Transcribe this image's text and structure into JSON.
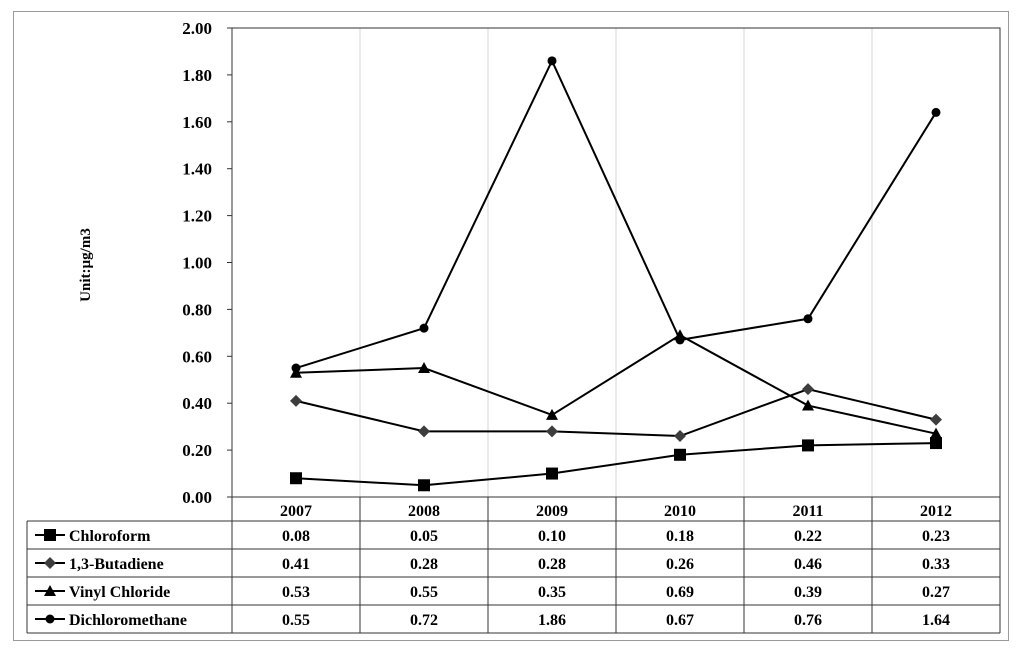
{
  "chart_data": {
    "type": "line",
    "title": "",
    "xlabel": "",
    "ylabel": "Unit:µg/m3",
    "ylim": [
      0,
      2
    ],
    "y_ticks": [
      "0.00",
      "0.20",
      "0.40",
      "0.60",
      "0.80",
      "1.00",
      "1.20",
      "1.40",
      "1.60",
      "1.80",
      "2.00"
    ],
    "categories": [
      "2007",
      "2008",
      "2009",
      "2010",
      "2011",
      "2012"
    ],
    "grid": "vertical",
    "legend": "data table below plot",
    "series": [
      {
        "name": "Chloroform",
        "marker": "square",
        "values": [
          0.08,
          0.05,
          0.1,
          0.18,
          0.22,
          0.23
        ],
        "labels": [
          "0.08",
          "0.05",
          "0.10",
          "0.18",
          "0.22",
          "0.23"
        ]
      },
      {
        "name": "1,3-Butadiene",
        "marker": "diamond",
        "values": [
          0.41,
          0.28,
          0.28,
          0.26,
          0.46,
          0.33
        ],
        "labels": [
          "0.41",
          "0.28",
          "0.28",
          "0.26",
          "0.46",
          "0.33"
        ]
      },
      {
        "name": "Vinyl Chloride",
        "marker": "triangle",
        "values": [
          0.53,
          0.55,
          0.35,
          0.69,
          0.39,
          0.27
        ],
        "labels": [
          "0.53",
          "0.55",
          "0.35",
          "0.69",
          "0.39",
          "0.27"
        ]
      },
      {
        "name": "Dichloromethane",
        "marker": "circle",
        "values": [
          0.55,
          0.72,
          1.86,
          0.67,
          0.76,
          1.64
        ],
        "labels": [
          "0.55",
          "0.72",
          "1.86",
          "0.67",
          "0.76",
          "1.64"
        ]
      }
    ]
  }
}
